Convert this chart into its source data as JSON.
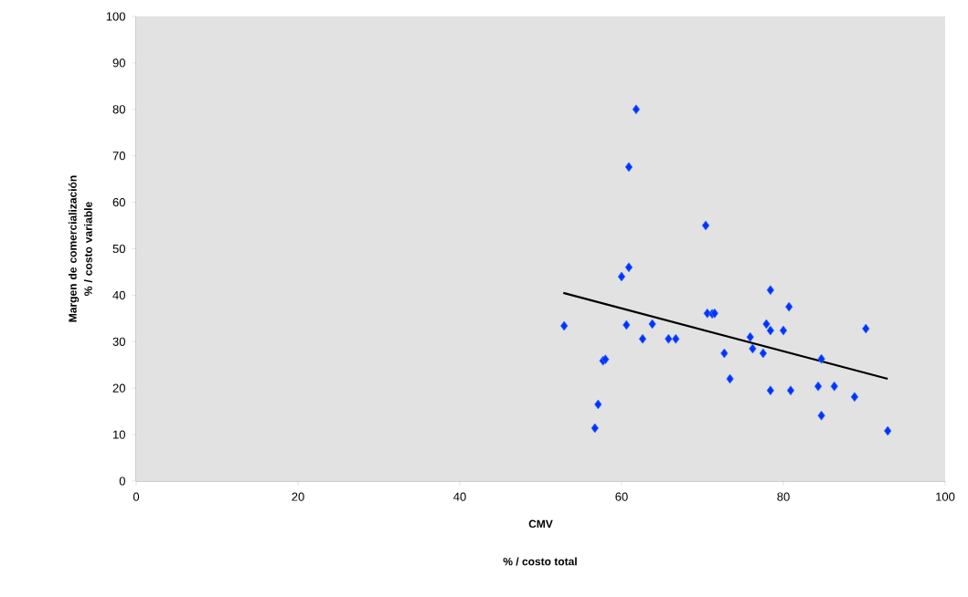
{
  "chart_data": {
    "type": "scatter",
    "xlabel": "CMV",
    "ylabel": "Margen de comercialización % / costo variable",
    "annotations": [
      "% / costo total"
    ],
    "xlim": [
      0,
      100
    ],
    "ylim": [
      0,
      100
    ],
    "xticks": [
      0,
      20,
      40,
      60,
      80,
      100
    ],
    "yticks": [
      0,
      10,
      20,
      30,
      40,
      50,
      60,
      70,
      80,
      90,
      100
    ],
    "grid": false,
    "series": [
      {
        "marker": "diamond",
        "color": "#0033ff",
        "x": [
          52.9,
          56.7,
          57.1,
          57.7,
          58.0,
          60.0,
          60.9,
          60.6,
          60.9,
          61.8,
          62.6,
          63.8,
          65.8,
          66.7,
          70.4,
          70.6,
          71.2,
          71.5,
          72.7,
          73.4,
          78.4,
          80.7,
          77.9,
          78.4,
          80.0,
          75.9,
          76.2,
          77.5,
          84.7,
          90.2,
          78.4,
          80.9,
          84.3,
          86.3,
          88.8,
          84.7,
          92.9
        ],
        "values": [
          33.4,
          11.4,
          16.5,
          25.9,
          26.2,
          44.0,
          46.0,
          33.6,
          67.6,
          80.0,
          30.6,
          33.8,
          30.6,
          30.6,
          55.0,
          36.1,
          36.0,
          36.1,
          27.5,
          22.0,
          41.1,
          37.5,
          33.8,
          32.4,
          32.4,
          31.0,
          28.5,
          27.5,
          26.3,
          32.8,
          19.5,
          19.5,
          20.4,
          20.4,
          18.1,
          14.1,
          10.8
        ]
      },
      {
        "type": "line",
        "marker": "none",
        "color": "#000000",
        "x": [
          52.8,
          92.9
        ],
        "values": [
          40.5,
          22.0
        ]
      }
    ]
  }
}
